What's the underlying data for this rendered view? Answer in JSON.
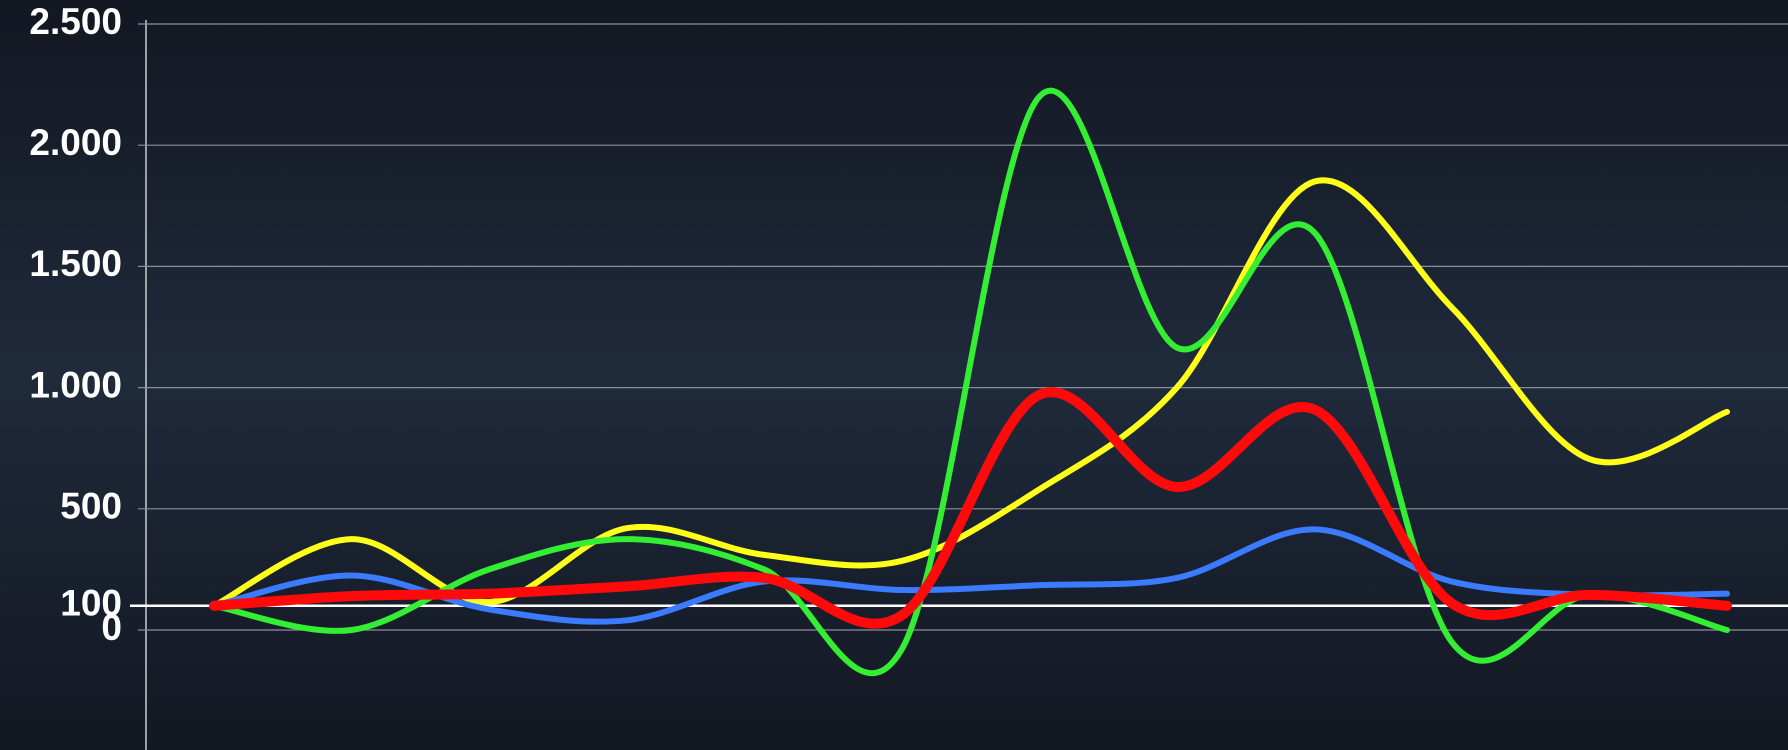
{
  "chart_data": {
    "type": "line",
    "categories": [
      null,
      null,
      null,
      null,
      null,
      null,
      null,
      null,
      null,
      null,
      null,
      null
    ],
    "series": [
      {
        "color": "#ffff1a",
        "values": [
          100,
          375,
          115,
          420,
          310,
          285,
          580,
          1000,
          1850,
          1330,
          705,
          900
        ]
      },
      {
        "color": "#33ee33",
        "values": [
          100,
          0,
          250,
          375,
          250,
          -80,
          2200,
          1165,
          1640,
          -50,
          145,
          0
        ]
      },
      {
        "color": "#3b7bff",
        "values": [
          100,
          225,
          85,
          40,
          200,
          165,
          185,
          215,
          415,
          200,
          145,
          150
        ]
      },
      {
        "color": "#ff0a0a",
        "values": [
          100,
          140,
          150,
          180,
          215,
          60,
          970,
          590,
          910,
          110,
          145,
          100
        ]
      }
    ],
    "ylim": [
      -495,
      2500
    ],
    "yticks": [
      0,
      100,
      500,
      {
        "value": 1000,
        "label": "1.000"
      },
      {
        "value": 1500,
        "label": "1.500"
      },
      {
        "value": 2000,
        "label": "2.000"
      },
      {
        "value": 2500,
        "label": "2.500"
      }
    ],
    "grid": true
  }
}
